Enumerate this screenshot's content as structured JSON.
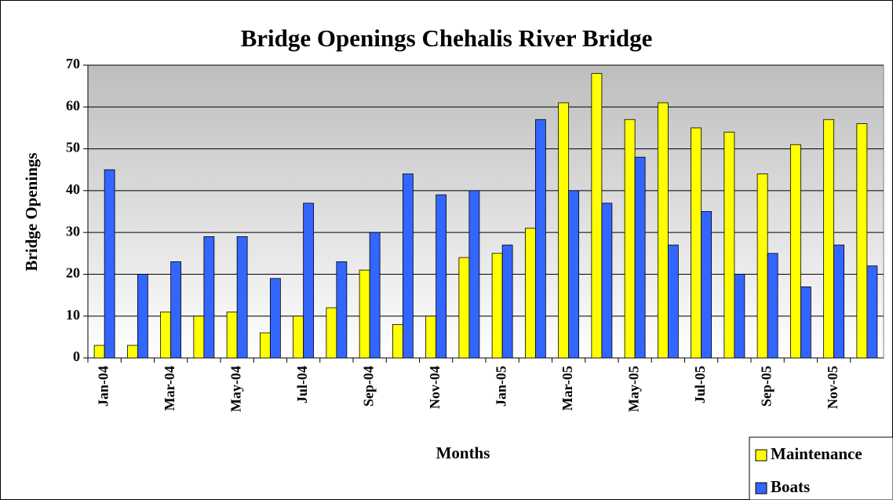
{
  "chart_data": {
    "type": "bar",
    "title": "Bridge Openings Chehalis River Bridge",
    "x_label": "Months",
    "y_label": "Bridge Openings",
    "categories": [
      "Jan-04",
      null,
      "Mar-04",
      null,
      "May-04",
      null,
      "Jul-04",
      null,
      "Sep-04",
      null,
      "Nov-04",
      null,
      "Jan-05",
      null,
      "Mar-05",
      null,
      "May-05",
      null,
      "Jul-05",
      null,
      "Sep-05",
      null,
      "Nov-05",
      null
    ],
    "series": [
      {
        "name": "Maintenance",
        "color": "#ffff00",
        "values": [
          3,
          3,
          11,
          10,
          11,
          6,
          10,
          12,
          21,
          8,
          10,
          24,
          25,
          31,
          61,
          68,
          57,
          61,
          55,
          54,
          44,
          51,
          57,
          56
        ]
      },
      {
        "name": "Boats",
        "color": "#3366ff",
        "values": [
          45,
          20,
          23,
          29,
          29,
          19,
          37,
          23,
          30,
          44,
          39,
          40,
          27,
          57,
          40,
          37,
          48,
          27,
          35,
          20,
          25,
          17,
          27,
          22
        ]
      }
    ],
    "ylim": [
      0,
      70
    ],
    "yticks": [
      0,
      10,
      20,
      30,
      40,
      50,
      60,
      70
    ],
    "grid": true,
    "legend": "bottom-right"
  }
}
